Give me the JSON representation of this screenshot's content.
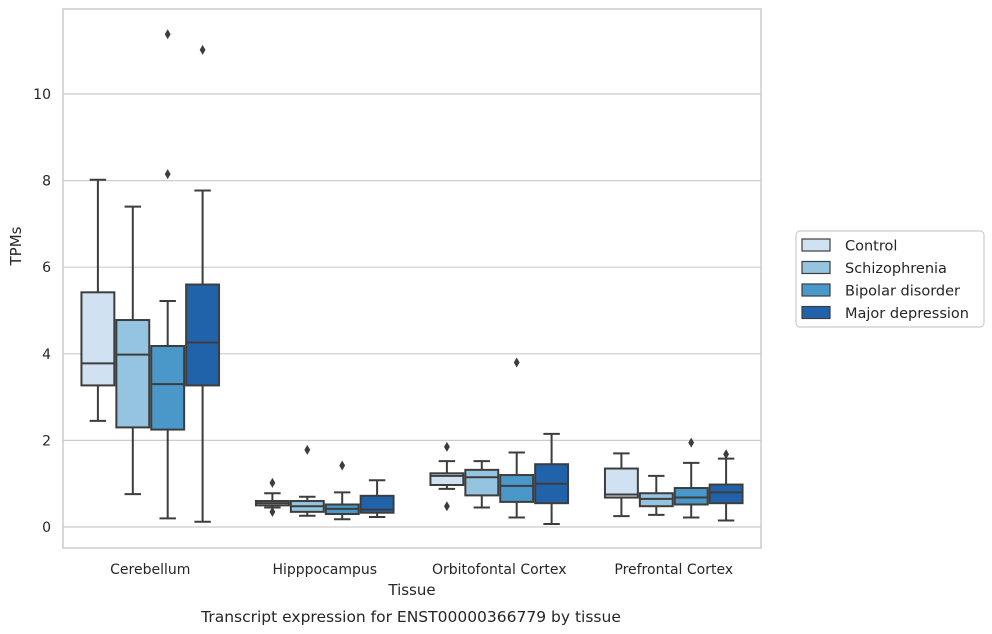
{
  "chart_data": {
    "type": "box",
    "title": "",
    "caption": "Transcript expression for ENST00000366779 by tissue",
    "xlabel": "Tissue",
    "ylabel": "TPMs",
    "ylim": [
      -0.45,
      11.95
    ],
    "yticks": [
      0,
      2,
      4,
      6,
      8,
      10
    ],
    "grid": "horizontal",
    "legend_position": "right",
    "categories": [
      "Cerebellum",
      "Hipppocampus",
      "Orbitofontal Cortex",
      "Prefrontal Cortex"
    ],
    "series": [
      {
        "name": "Control",
        "color": "#d0e1f2",
        "boxes": [
          {
            "whislo": 2.45,
            "q1": 3.27,
            "med": 3.78,
            "q3": 5.42,
            "whishi": 8.02,
            "fliers": []
          },
          {
            "whislo": 0.45,
            "q1": 0.5,
            "med": 0.55,
            "q3": 0.6,
            "whishi": 0.78,
            "fliers": [
              0.35,
              1.02
            ]
          },
          {
            "whislo": 0.88,
            "q1": 0.97,
            "med": 1.18,
            "q3": 1.24,
            "whishi": 1.52,
            "fliers": [
              0.48,
              1.85
            ]
          },
          {
            "whislo": 0.25,
            "q1": 0.68,
            "med": 0.75,
            "q3": 1.35,
            "whishi": 1.7,
            "fliers": []
          }
        ]
      },
      {
        "name": "Schizophrenia",
        "color": "#94c4df",
        "boxes": [
          {
            "whislo": 0.76,
            "q1": 2.3,
            "med": 3.98,
            "q3": 4.78,
            "whishi": 7.4,
            "fliers": []
          },
          {
            "whislo": 0.26,
            "q1": 0.35,
            "med": 0.48,
            "q3": 0.6,
            "whishi": 0.7,
            "fliers": [
              1.78
            ]
          },
          {
            "whislo": 0.45,
            "q1": 0.73,
            "med": 1.15,
            "q3": 1.32,
            "whishi": 1.52,
            "fliers": []
          },
          {
            "whislo": 0.28,
            "q1": 0.48,
            "med": 0.65,
            "q3": 0.78,
            "whishi": 1.18,
            "fliers": []
          }
        ]
      },
      {
        "name": "Bipolar disorder",
        "color": "#4a98c9",
        "boxes": [
          {
            "whislo": 0.2,
            "q1": 2.25,
            "med": 3.3,
            "q3": 4.18,
            "whishi": 5.22,
            "fliers": [
              8.15,
              11.38
            ]
          },
          {
            "whislo": 0.18,
            "q1": 0.3,
            "med": 0.42,
            "q3": 0.52,
            "whishi": 0.8,
            "fliers": [
              1.42
            ]
          },
          {
            "whislo": 0.22,
            "q1": 0.58,
            "med": 0.95,
            "q3": 1.2,
            "whishi": 1.72,
            "fliers": [
              3.8
            ]
          },
          {
            "whislo": 0.22,
            "q1": 0.52,
            "med": 0.68,
            "q3": 0.9,
            "whishi": 1.48,
            "fliers": [
              1.95
            ]
          }
        ]
      },
      {
        "name": "Major depression",
        "color": "#2163aa",
        "boxes": [
          {
            "whislo": 0.12,
            "q1": 3.27,
            "med": 4.26,
            "q3": 5.6,
            "whishi": 7.77,
            "fliers": [
              11.02
            ]
          },
          {
            "whislo": 0.23,
            "q1": 0.33,
            "med": 0.4,
            "q3": 0.72,
            "whishi": 1.08,
            "fliers": []
          },
          {
            "whislo": 0.07,
            "q1": 0.55,
            "med": 1.0,
            "q3": 1.45,
            "whishi": 2.15,
            "fliers": []
          },
          {
            "whislo": 0.15,
            "q1": 0.55,
            "med": 0.8,
            "q3": 0.98,
            "whishi": 1.58,
            "fliers": [
              1.68
            ]
          }
        ]
      }
    ]
  }
}
